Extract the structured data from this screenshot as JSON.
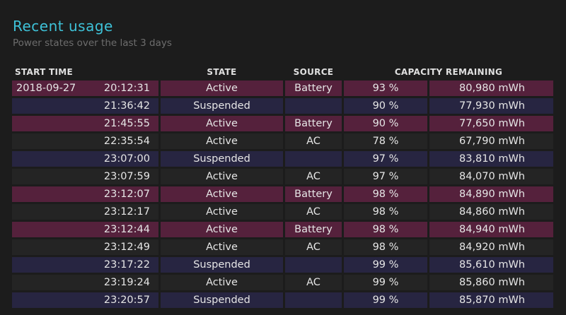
{
  "header": {
    "title": "Recent usage",
    "subtitle": "Power states over the last 3 days"
  },
  "table": {
    "columns": [
      "START TIME",
      "STATE",
      "SOURCE",
      "CAPACITY REMAINING"
    ],
    "rows": [
      {
        "date": "2018-09-27",
        "time": "20:12:31",
        "state": "Active",
        "source": "Battery",
        "percent": "93 %",
        "mwh": "80,980 mWh",
        "kind": "active"
      },
      {
        "date": "",
        "time": "21:36:42",
        "state": "Suspended",
        "source": "",
        "percent": "90 %",
        "mwh": "77,930 mWh",
        "kind": "suspended"
      },
      {
        "date": "",
        "time": "21:45:55",
        "state": "Active",
        "source": "Battery",
        "percent": "90 %",
        "mwh": "77,650 mWh",
        "kind": "active"
      },
      {
        "date": "",
        "time": "22:35:54",
        "state": "Active",
        "source": "AC",
        "percent": "78 %",
        "mwh": "67,790 mWh",
        "kind": "ac"
      },
      {
        "date": "",
        "time": "23:07:00",
        "state": "Suspended",
        "source": "",
        "percent": "97 %",
        "mwh": "83,810 mWh",
        "kind": "suspended"
      },
      {
        "date": "",
        "time": "23:07:59",
        "state": "Active",
        "source": "AC",
        "percent": "97 %",
        "mwh": "84,070 mWh",
        "kind": "ac"
      },
      {
        "date": "",
        "time": "23:12:07",
        "state": "Active",
        "source": "Battery",
        "percent": "98 %",
        "mwh": "84,890 mWh",
        "kind": "active"
      },
      {
        "date": "",
        "time": "23:12:17",
        "state": "Active",
        "source": "AC",
        "percent": "98 %",
        "mwh": "84,860 mWh",
        "kind": "ac"
      },
      {
        "date": "",
        "time": "23:12:44",
        "state": "Active",
        "source": "Battery",
        "percent": "98 %",
        "mwh": "84,940 mWh",
        "kind": "active"
      },
      {
        "date": "",
        "time": "23:12:49",
        "state": "Active",
        "source": "AC",
        "percent": "98 %",
        "mwh": "84,920 mWh",
        "kind": "ac"
      },
      {
        "date": "",
        "time": "23:17:22",
        "state": "Suspended",
        "source": "",
        "percent": "99 %",
        "mwh": "85,610 mWh",
        "kind": "suspended"
      },
      {
        "date": "",
        "time": "23:19:24",
        "state": "Active",
        "source": "AC",
        "percent": "99 %",
        "mwh": "85,860 mWh",
        "kind": "ac"
      },
      {
        "date": "",
        "time": "23:20:57",
        "state": "Suspended",
        "source": "",
        "percent": "99 %",
        "mwh": "85,870 mWh",
        "kind": "suspended"
      }
    ]
  },
  "colors": {
    "title": "#3ec2d8",
    "battery_row": "#55213c",
    "ac_row": "#242424",
    "suspended_row": "#272541",
    "background": "#1c1c1c"
  }
}
